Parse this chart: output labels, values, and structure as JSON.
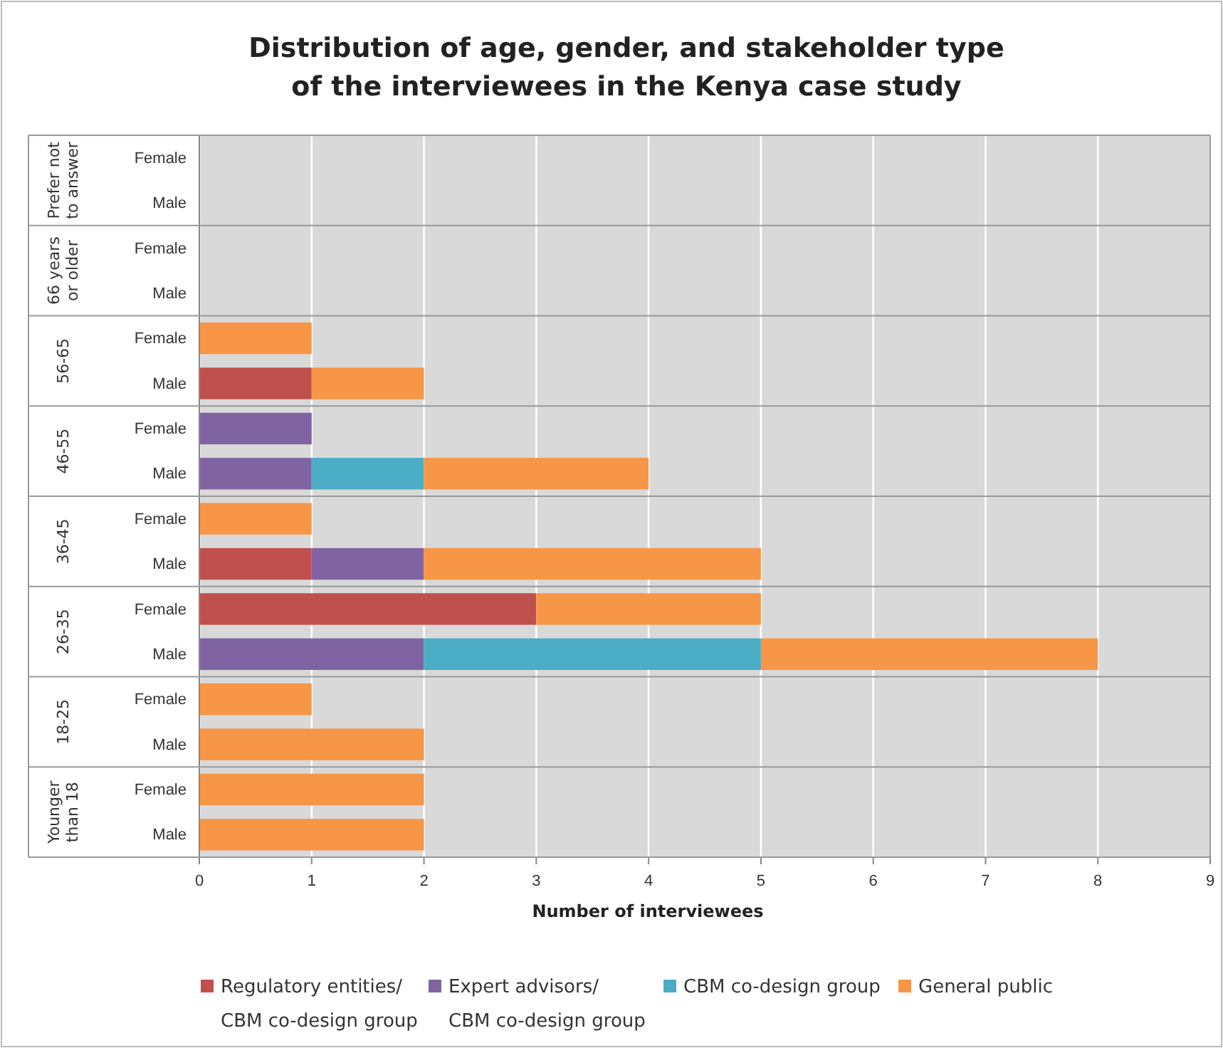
{
  "chart_data": {
    "type": "bar",
    "orientation": "horizontal",
    "stacked": true,
    "title": "Distribution of age, gender, and stakeholder type\nof the interviewees in the Kenya case study",
    "xlabel": "Number of interviewees",
    "categories": [
      "Female",
      "Male",
      "Female",
      "Male",
      "Female",
      "Male",
      "Female",
      "Male",
      "Female",
      "Male",
      "Female",
      "Male",
      "Female",
      "Male",
      "Female",
      "Male"
    ],
    "annotations": [
      "Prefer not to answer",
      "66 years or older",
      "56-65",
      "46-55",
      "36-45",
      "26-35",
      "18-25",
      "Younger than 18"
    ],
    "series": [
      {
        "name": "Regulatory entities/ CBM co-design group",
        "color": "#c0504d",
        "values": [
          0,
          0,
          0,
          0,
          0,
          1,
          0,
          0,
          0,
          1,
          3,
          0,
          0,
          0,
          0,
          0
        ]
      },
      {
        "name": "Expert advisors/ CBM co-design group",
        "color": "#8064a2",
        "values": [
          0,
          0,
          0,
          0,
          0,
          0,
          1,
          1,
          0,
          1,
          0,
          2,
          0,
          0,
          0,
          0
        ]
      },
      {
        "name": "CBM co-design group",
        "color": "#4bacc6",
        "values": [
          0,
          0,
          0,
          0,
          0,
          0,
          0,
          1,
          0,
          0,
          0,
          3,
          0,
          0,
          0,
          0
        ]
      },
      {
        "name": "General public",
        "color": "#f79646",
        "values": [
          0,
          0,
          0,
          0,
          1,
          1,
          0,
          2,
          1,
          3,
          2,
          3,
          1,
          2,
          2,
          2
        ]
      }
    ],
    "xlim": [
      0,
      9
    ],
    "xticks": [
      0,
      1,
      2,
      3,
      4,
      5,
      6,
      7,
      8,
      9
    ],
    "grid": "x",
    "legend": "bottom"
  }
}
